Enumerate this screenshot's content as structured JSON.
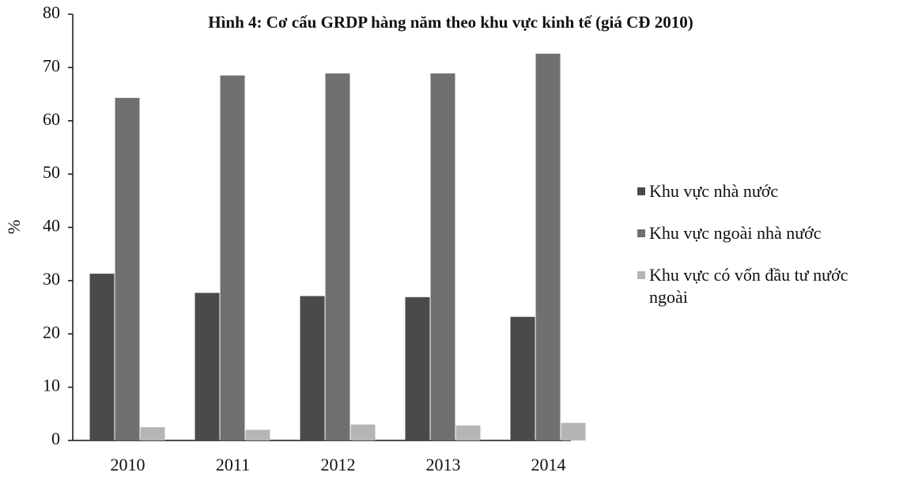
{
  "chart_data": {
    "type": "bar",
    "title": "Hình 4: Cơ cấu GRDP hàng năm theo khu vực kinh tế (giá CĐ 2010)",
    "y_label": "%",
    "categories": [
      "2010",
      "2011",
      "2012",
      "2013",
      "2014"
    ],
    "series": [
      {
        "name": "Khu vực nhà nước",
        "color": "#4a4a4a",
        "values": [
          31.3,
          27.7,
          27.1,
          26.9,
          23.2
        ]
      },
      {
        "name": "Khu vực ngoài nhà nước",
        "color": "#707070",
        "values": [
          64.3,
          68.5,
          68.9,
          68.9,
          72.6
        ]
      },
      {
        "name": "Khu vực có vốn đầu tư nước ngoài",
        "color": "#b5b5b5",
        "values": [
          2.5,
          2.0,
          3.0,
          2.8,
          3.3
        ]
      }
    ],
    "ylim": [
      0,
      80
    ],
    "yticks": [
      0,
      10,
      20,
      30,
      40,
      50,
      60,
      70,
      80
    ],
    "legend": "right",
    "grid": false
  }
}
